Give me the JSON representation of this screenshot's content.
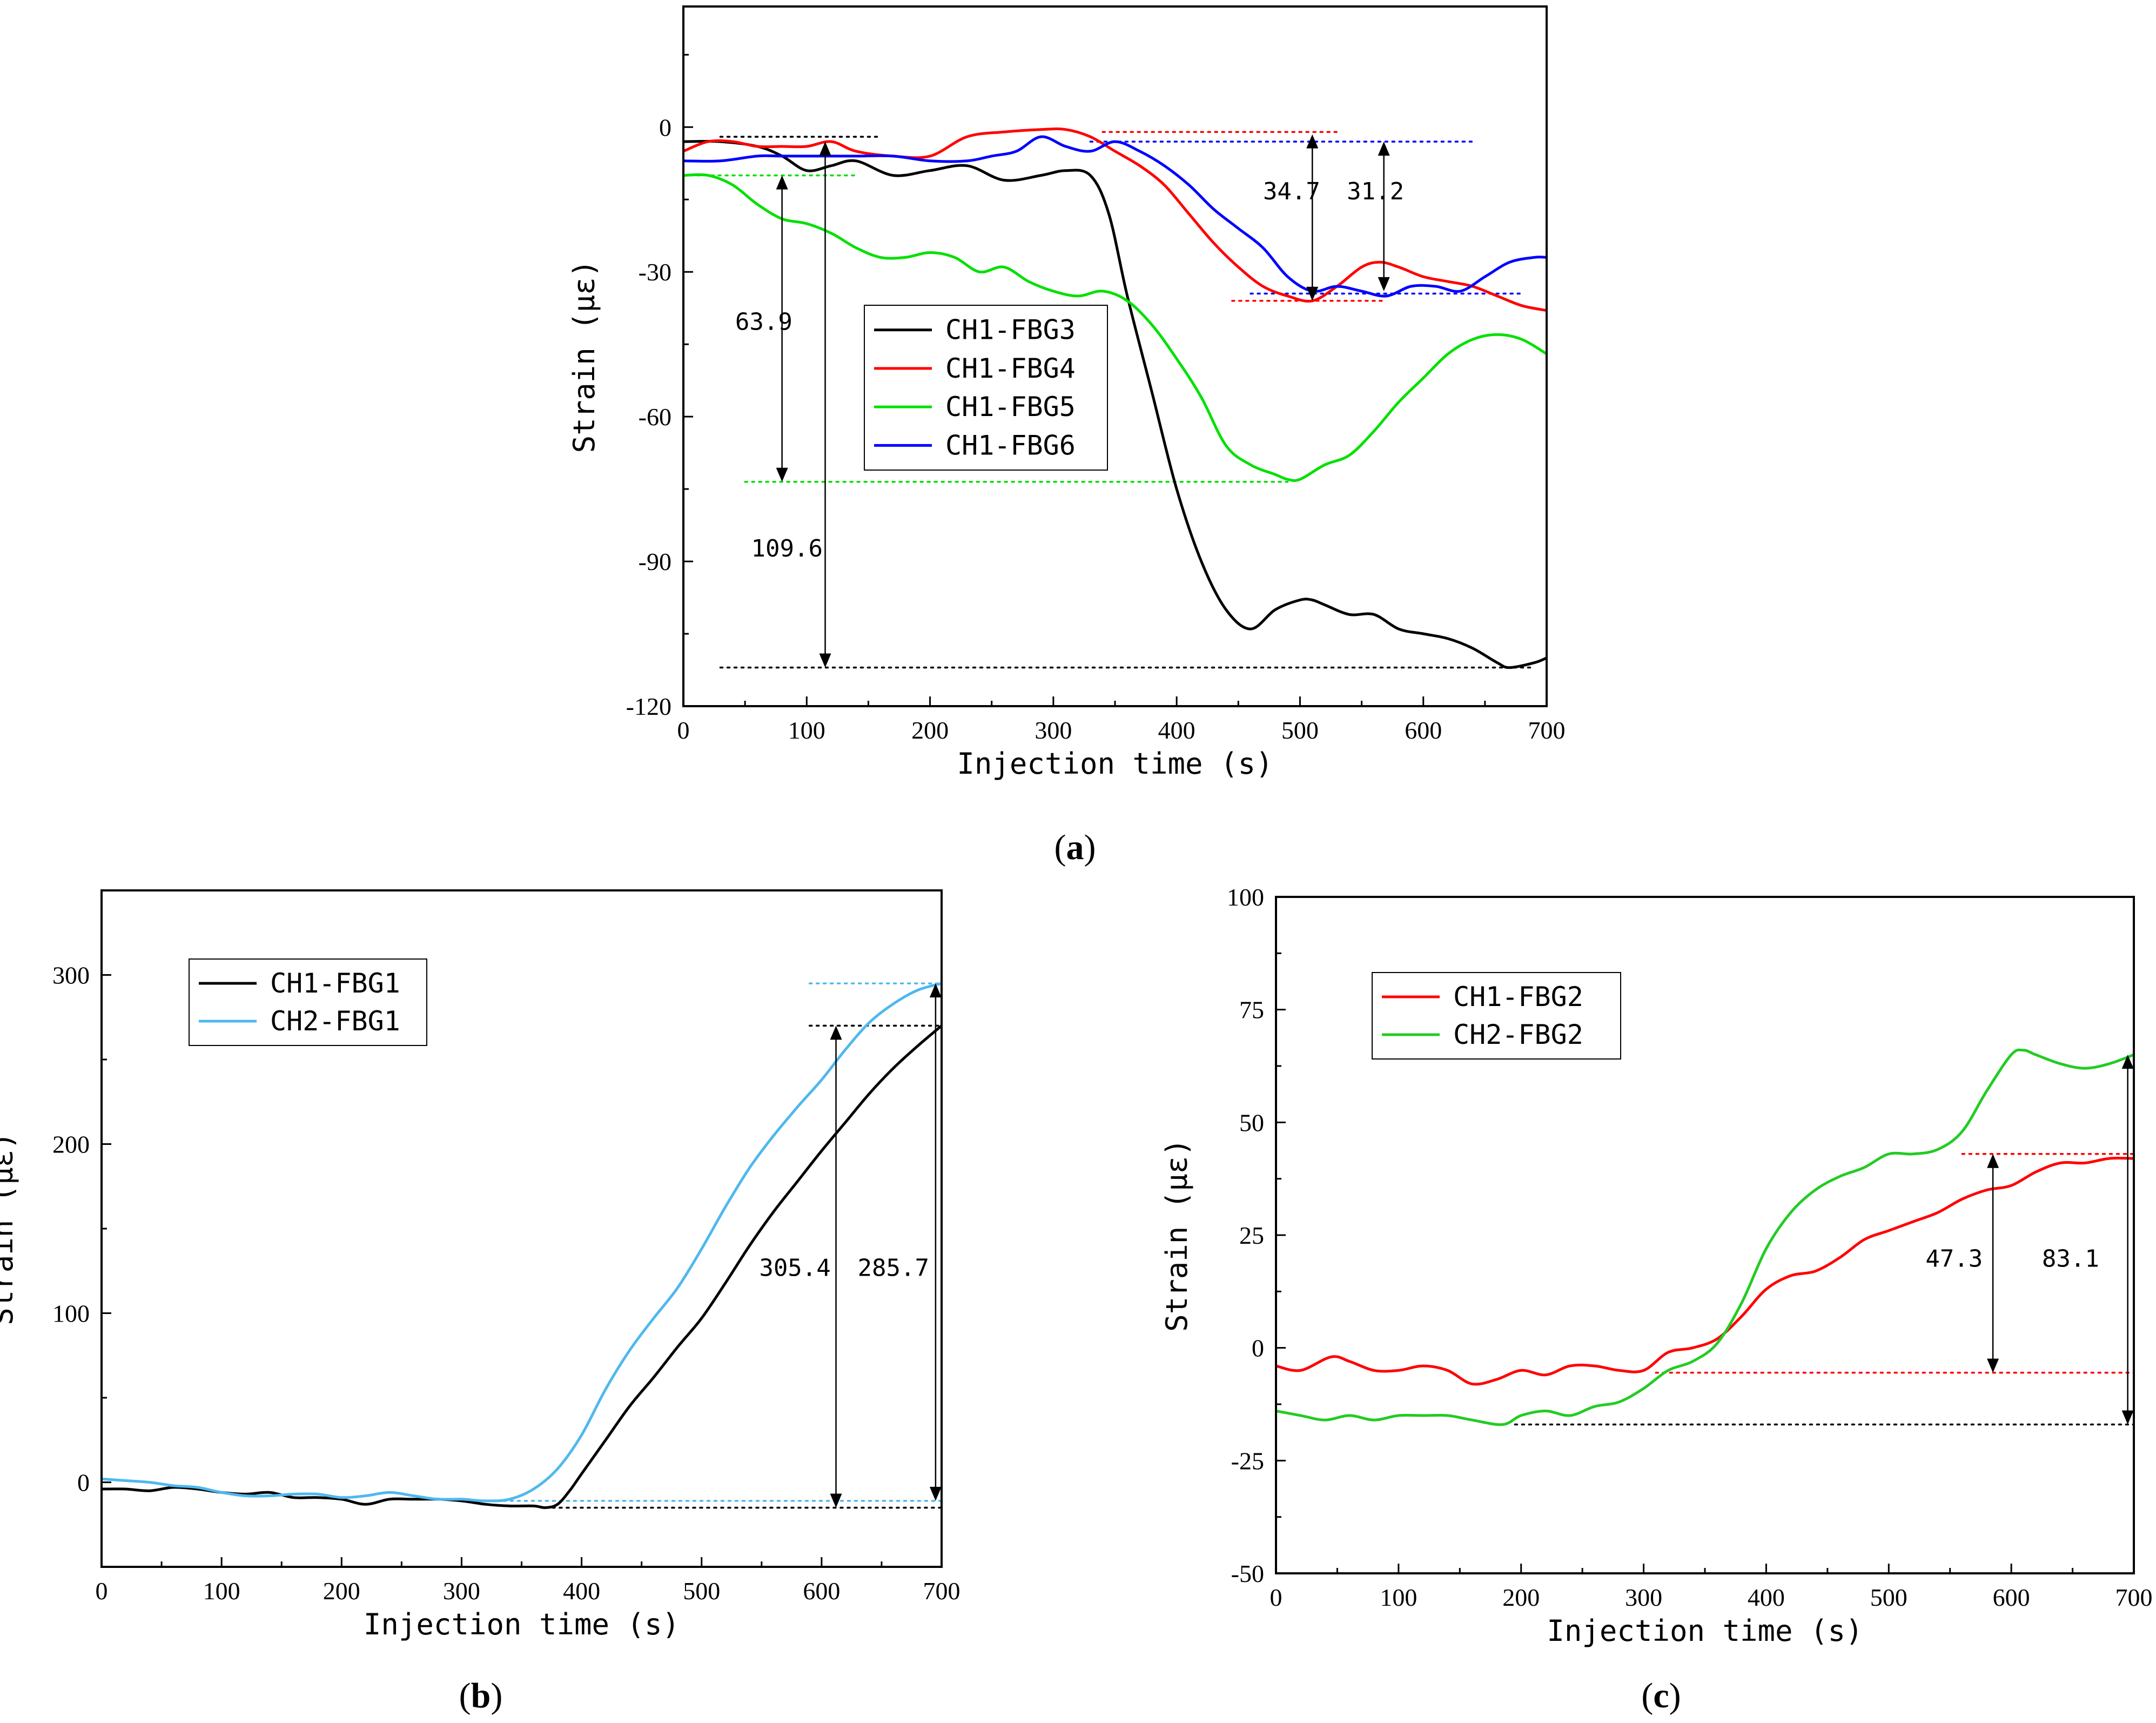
{
  "chart_data": [
    {
      "id": "a",
      "type": "line",
      "panel_label": "a",
      "xlabel": "Injection time (s)",
      "ylabel": "Strain (με)",
      "xlim": [
        0,
        700
      ],
      "ylim": [
        -120,
        25
      ],
      "xticks": [
        0,
        100,
        200,
        300,
        400,
        500,
        600,
        700
      ],
      "yticks": [
        -120,
        -90,
        -60,
        -30,
        0
      ],
      "legend_position": "center",
      "series": [
        {
          "name": "CH1-FBG3",
          "color": "#000000",
          "x": [
            0,
            30,
            60,
            80,
            100,
            120,
            140,
            170,
            200,
            230,
            260,
            290,
            310,
            330,
            345,
            360,
            380,
            400,
            420,
            440,
            460,
            480,
            500,
            510,
            520,
            540,
            560,
            580,
            600,
            620,
            640,
            660,
            670,
            690,
            700
          ],
          "y": [
            -3,
            -3,
            -4,
            -6,
            -9,
            -8,
            -7,
            -10,
            -9,
            -8,
            -11,
            -10,
            -9,
            -10,
            -18,
            -35,
            -55,
            -75,
            -90,
            -100,
            -104,
            -100,
            -98,
            -98,
            -99,
            -101,
            -101,
            -104,
            -105,
            -106,
            -108,
            -111,
            -112,
            -111,
            -110
          ]
        },
        {
          "name": "CH1-FBG4",
          "color": "#ff0000",
          "x": [
            0,
            20,
            40,
            60,
            80,
            100,
            120,
            140,
            170,
            200,
            230,
            260,
            290,
            310,
            330,
            350,
            370,
            390,
            410,
            430,
            450,
            470,
            490,
            510,
            530,
            550,
            565,
            580,
            600,
            620,
            640,
            660,
            680,
            700
          ],
          "y": [
            -5,
            -3,
            -3,
            -4,
            -4,
            -4,
            -3,
            -5,
            -6,
            -6,
            -2,
            -1,
            -0.5,
            -0.5,
            -2,
            -5,
            -8,
            -12,
            -18,
            -24,
            -29,
            -33,
            -35,
            -36,
            -33,
            -29,
            -28,
            -29,
            -31,
            -32,
            -33,
            -35,
            -37,
            -38
          ]
        },
        {
          "name": "CH1-FBG5",
          "color": "#00e000",
          "x": [
            0,
            20,
            40,
            60,
            80,
            100,
            120,
            140,
            160,
            180,
            200,
            220,
            240,
            260,
            280,
            300,
            320,
            340,
            360,
            380,
            400,
            420,
            440,
            460,
            480,
            490,
            500,
            520,
            540,
            560,
            580,
            600,
            620,
            640,
            660,
            680,
            700
          ],
          "y": [
            -10,
            -10,
            -12,
            -16,
            -19,
            -20,
            -22,
            -25,
            -27,
            -27,
            -26,
            -27,
            -30,
            -29,
            -32,
            -34,
            -35,
            -34,
            -36,
            -41,
            -48,
            -56,
            -66,
            -70,
            -72,
            -73,
            -73,
            -70,
            -68,
            -63,
            -57,
            -52,
            -47,
            -44,
            -43,
            -44,
            -47
          ]
        },
        {
          "name": "CH1-FBG6",
          "color": "#0000ff",
          "x": [
            0,
            30,
            60,
            80,
            100,
            120,
            140,
            170,
            200,
            230,
            250,
            270,
            290,
            310,
            330,
            350,
            370,
            390,
            410,
            430,
            450,
            470,
            490,
            510,
            530,
            550,
            570,
            590,
            610,
            630,
            650,
            670,
            690,
            700
          ],
          "y": [
            -7,
            -7,
            -6,
            -6,
            -6,
            -6,
            -6,
            -6,
            -7,
            -7,
            -6,
            -5,
            -2,
            -4,
            -5,
            -3,
            -5,
            -8,
            -12,
            -17,
            -21,
            -25,
            -31,
            -34,
            -33,
            -34,
            -35,
            -33,
            -33,
            -34,
            -31,
            -28,
            -27,
            -27
          ]
        }
      ],
      "reference_lines": [
        {
          "color": "#000000",
          "y": -2,
          "x": [
            30,
            160
          ]
        },
        {
          "color": "#ff0000",
          "y": -1,
          "x": [
            340,
            530
          ]
        },
        {
          "color": "#0000ff",
          "y": -3,
          "x": [
            330,
            640
          ]
        },
        {
          "color": "#00e000",
          "y": -10,
          "x": [
            0,
            140
          ]
        },
        {
          "color": "#ff0000",
          "y": -36,
          "x": [
            445,
            570
          ]
        },
        {
          "color": "#0000ff",
          "y": -34.5,
          "x": [
            460,
            680
          ]
        },
        {
          "color": "#00e000",
          "y": -73.5,
          "x": [
            50,
            490
          ]
        },
        {
          "color": "#000000",
          "y": -112,
          "x": [
            30,
            690
          ]
        }
      ],
      "arrows": [
        {
          "x": 80,
          "y1": -10,
          "y2": -73.5
        },
        {
          "x": 115,
          "y1": -3,
          "y2": -112
        },
        {
          "x": 510,
          "y1": -1.5,
          "y2": -36
        },
        {
          "x": 568,
          "y1": -3,
          "y2": -34
        }
      ],
      "annotations": [
        {
          "text": "63.9",
          "x": 42,
          "y": -42
        },
        {
          "text": "109.6",
          "x": 55,
          "y": -89
        },
        {
          "text": "34.7",
          "x": 470,
          "y": -15
        },
        {
          "text": "31.2",
          "x": 538,
          "y": -15
        }
      ]
    },
    {
      "id": "b",
      "type": "line",
      "panel_label": "b",
      "xlabel": "Injection time (s)",
      "ylabel": "Strain (με)",
      "xlim": [
        0,
        700
      ],
      "ylim": [
        -50,
        350
      ],
      "xticks": [
        0,
        100,
        200,
        300,
        400,
        500,
        600,
        700
      ],
      "yticks": [
        0,
        100,
        200,
        300
      ],
      "legend_position": "top-left",
      "series": [
        {
          "name": "CH1-FBG1",
          "color": "#000000",
          "x": [
            0,
            20,
            40,
            60,
            80,
            100,
            120,
            140,
            160,
            180,
            200,
            220,
            240,
            260,
            280,
            300,
            320,
            340,
            360,
            370,
            380,
            390,
            400,
            420,
            440,
            460,
            480,
            500,
            520,
            540,
            560,
            580,
            600,
            620,
            640,
            660,
            680,
            700
          ],
          "y": [
            -4,
            -4,
            -5,
            -3,
            -4,
            -6,
            -7,
            -6,
            -9,
            -9,
            -10,
            -13,
            -10,
            -10,
            -10,
            -11,
            -13,
            -14,
            -14,
            -15,
            -13,
            -5,
            5,
            25,
            45,
            62,
            80,
            97,
            118,
            140,
            160,
            178,
            196,
            213,
            230,
            245,
            258,
            270
          ]
        },
        {
          "name": "CH2-FBG1",
          "color": "#4fb8ee",
          "x": [
            0,
            20,
            40,
            60,
            80,
            100,
            120,
            140,
            160,
            180,
            200,
            220,
            240,
            260,
            280,
            300,
            320,
            340,
            360,
            380,
            400,
            420,
            440,
            460,
            480,
            500,
            520,
            540,
            560,
            580,
            600,
            620,
            640,
            660,
            680,
            700
          ],
          "y": [
            2,
            1,
            0,
            -2,
            -3,
            -6,
            -8,
            -8,
            -7,
            -7,
            -9,
            -8,
            -6,
            -8,
            -10,
            -10,
            -11,
            -10,
            -4,
            8,
            28,
            55,
            78,
            97,
            115,
            138,
            163,
            186,
            205,
            222,
            238,
            256,
            272,
            283,
            291,
            295
          ]
        }
      ],
      "reference_lines": [
        {
          "color": "#4fb8ee",
          "y": 295,
          "x": [
            590,
            700
          ]
        },
        {
          "color": "#000000",
          "y": 270,
          "x": [
            590,
            700
          ]
        },
        {
          "color": "#4fb8ee",
          "y": -11,
          "x": [
            300,
            700
          ]
        },
        {
          "color": "#000000",
          "y": -15,
          "x": [
            370,
            700
          ]
        }
      ],
      "arrows": [
        {
          "x": 612,
          "y1": 270,
          "y2": -15
        },
        {
          "x": 695,
          "y1": 295,
          "y2": -11
        }
      ],
      "annotations": [
        {
          "text": "305.4",
          "x": 548,
          "y": 122
        },
        {
          "text": "285.7",
          "x": 630,
          "y": 122
        }
      ]
    },
    {
      "id": "c",
      "type": "line",
      "panel_label": "c",
      "xlabel": "Injection time (s)",
      "ylabel": "Strain (με)",
      "xlim": [
        0,
        700
      ],
      "ylim": [
        -50,
        100
      ],
      "xticks": [
        0,
        100,
        200,
        300,
        400,
        500,
        600,
        700
      ],
      "yticks": [
        -50,
        -25,
        0,
        25,
        50,
        75,
        100
      ],
      "legend_position": "top-left",
      "series": [
        {
          "name": "CH1-FBG2",
          "color": "#ff0000",
          "x": [
            0,
            20,
            45,
            60,
            80,
            100,
            120,
            140,
            160,
            180,
            200,
            220,
            240,
            260,
            280,
            300,
            320,
            340,
            360,
            380,
            400,
            420,
            440,
            460,
            480,
            500,
            520,
            540,
            560,
            580,
            600,
            620,
            640,
            660,
            680,
            700
          ],
          "y": [
            -4,
            -5,
            -2,
            -3,
            -5,
            -5,
            -4,
            -5,
            -8,
            -7,
            -5,
            -6,
            -4,
            -4,
            -5,
            -5,
            -1,
            0,
            2,
            7,
            13,
            16,
            17,
            20,
            24,
            26,
            28,
            30,
            33,
            35,
            36,
            39,
            41,
            41,
            42,
            42
          ]
        },
        {
          "name": "CH2-FBG2",
          "color": "#22cc22",
          "x": [
            0,
            20,
            40,
            60,
            80,
            100,
            120,
            140,
            160,
            185,
            200,
            220,
            240,
            260,
            280,
            300,
            320,
            340,
            360,
            380,
            400,
            420,
            440,
            460,
            480,
            500,
            520,
            540,
            560,
            580,
            600,
            610,
            620,
            640,
            660,
            680,
            700
          ],
          "y": [
            -14,
            -15,
            -16,
            -15,
            -16,
            -15,
            -15,
            -15,
            -16,
            -17,
            -15,
            -14,
            -15,
            -13,
            -12,
            -9,
            -5,
            -3,
            1,
            10,
            22,
            30,
            35,
            38,
            40,
            43,
            43,
            44,
            48,
            57,
            65,
            66,
            65,
            63,
            62,
            63,
            65
          ]
        }
      ],
      "reference_lines": [
        {
          "color": "#ff0000",
          "y": 43,
          "x": [
            560,
            700
          ]
        },
        {
          "color": "#ff0000",
          "y": -5.5,
          "x": [
            310,
            700
          ]
        },
        {
          "color": "#000000",
          "y": -17,
          "x": [
            195,
            700
          ]
        }
      ],
      "arrows": [
        {
          "x": 585,
          "y1": 43,
          "y2": -5.5
        },
        {
          "x": 695,
          "y1": 65,
          "y2": -17
        }
      ],
      "annotations": [
        {
          "text": "47.3",
          "x": 530,
          "y": 18
        },
        {
          "text": "83.1",
          "x": 625,
          "y": 18
        }
      ]
    }
  ]
}
